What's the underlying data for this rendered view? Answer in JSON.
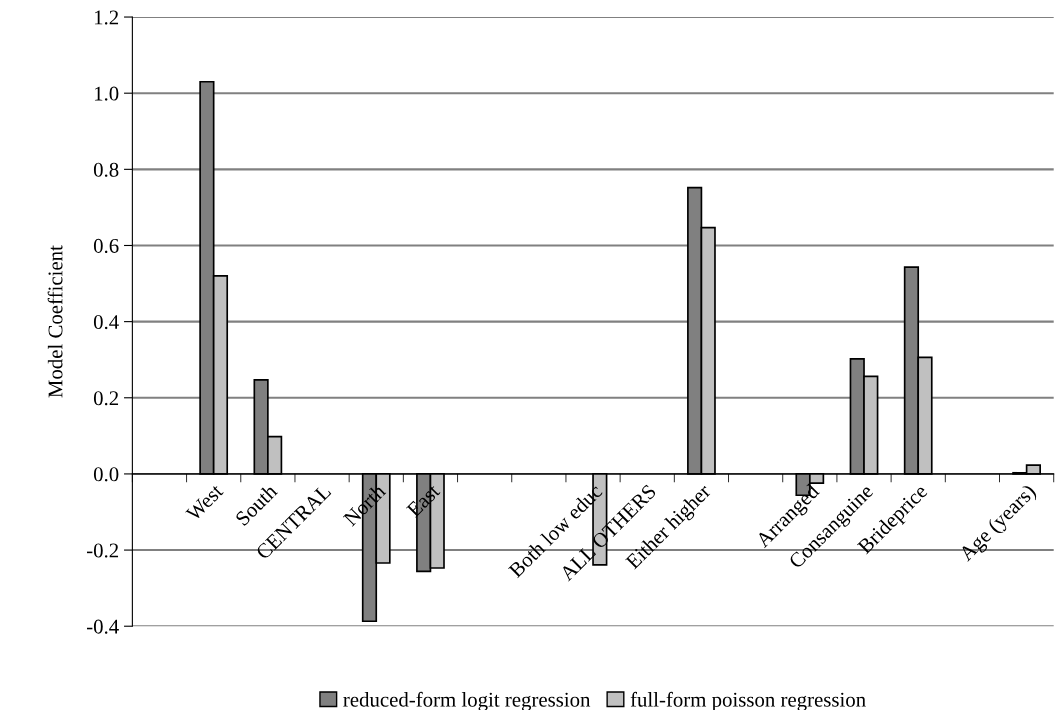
{
  "chart_data": {
    "type": "bar",
    "ylabel": "Model Coefficient",
    "categories": [
      null,
      "West",
      "South",
      "CENTRAL",
      "North",
      "East",
      null,
      null,
      "Both low educ",
      "ALL OTHERS",
      "Either higher",
      null,
      "Arranged",
      "Consanguine",
      "Brideprice",
      null,
      "Age (years)"
    ],
    "series": [
      {
        "name": "reduced-form logit regression",
        "color": "#808080",
        "values": [
          null,
          1.03,
          0.247,
          null,
          -0.387,
          -0.256,
          null,
          null,
          null,
          null,
          0.752,
          null,
          -0.056,
          0.302,
          0.543,
          null,
          0.003
        ]
      },
      {
        "name": "full-form poisson regression",
        "color": "#c0c0c0",
        "values": [
          null,
          0.52,
          0.098,
          null,
          -0.234,
          -0.247,
          null,
          null,
          -0.239,
          null,
          0.647,
          null,
          -0.024,
          0.256,
          0.306,
          null,
          0.023
        ]
      }
    ],
    "ylim": [
      -0.4,
      1.2
    ],
    "yticks": [
      {
        "value": -0.4,
        "label": "-0.4"
      },
      {
        "value": -0.2,
        "label": "-0.2"
      },
      {
        "value": 0,
        "label": "0.0"
      },
      {
        "value": 0.2,
        "label": "0.2"
      },
      {
        "value": 0.4,
        "label": "0.4"
      },
      {
        "value": 0.6,
        "label": "0.6"
      },
      {
        "value": 0.8,
        "label": "0.8"
      },
      {
        "value": 1,
        "label": "1.0"
      },
      {
        "value": 1.2,
        "label": "1.2"
      }
    ],
    "grid": "y",
    "legend": "bottom"
  }
}
